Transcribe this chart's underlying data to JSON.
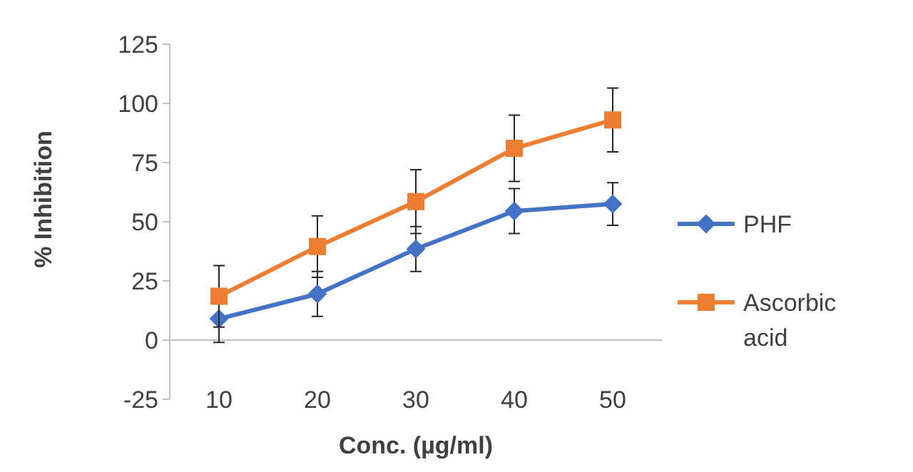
{
  "chart_data": {
    "type": "line",
    "xlabel": "Conc. (µg/ml)",
    "ylabel": "% Inhibition",
    "categories": [
      "10",
      "20",
      "30",
      "40",
      "50"
    ],
    "ylim": [
      -25,
      125
    ],
    "yticks": [
      -25,
      0,
      25,
      50,
      75,
      100,
      125
    ],
    "grid": false,
    "legend": "right",
    "line_style": "solid",
    "series": [
      {
        "name": "PHF",
        "color": "#4472c4",
        "marker": "diamond",
        "values": [
          9,
          19.5,
          38.5,
          54.5,
          57.5
        ],
        "errors": [
          10,
          9.5,
          9.5,
          9.5,
          9
        ]
      },
      {
        "name": "Ascorbic acid",
        "color": "#ed7d31",
        "marker": "square",
        "values": [
          18.5,
          39.5,
          58.5,
          81,
          93
        ],
        "errors": [
          13,
          13,
          13.5,
          14,
          13.5
        ]
      }
    ]
  }
}
